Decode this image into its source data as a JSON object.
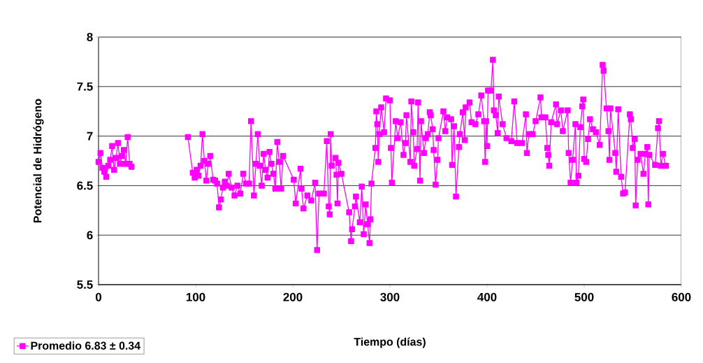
{
  "chart_data": {
    "type": "line",
    "xlabel": "Tiempo (días)",
    "ylabel": "Potencial de Hidrógeno",
    "xlim": [
      0,
      600
    ],
    "xticks": [
      0,
      100,
      200,
      300,
      400,
      500,
      600
    ],
    "ylim": [
      5.5,
      8
    ],
    "yticks": [
      5.5,
      6,
      6.5,
      7,
      7.5,
      8
    ],
    "grid": "y",
    "legend": "bottom left",
    "marker": "square",
    "line_style": "solid",
    "series": [
      {
        "name": "Promedio 6.83 ± 0.34",
        "color": "#ff00ff",
        "x": [
          0,
          2,
          4,
          6,
          8,
          10,
          12,
          14,
          16,
          18,
          20,
          22,
          24,
          26,
          28,
          30,
          32,
          34,
          60,
          92,
          97,
          99,
          101,
          103,
          105,
          107,
          109,
          111,
          113,
          115,
          118,
          120,
          122,
          124,
          126,
          128,
          130,
          132,
          134,
          137,
          140,
          143,
          146,
          149,
          152,
          155,
          157,
          160,
          162,
          164,
          166,
          168,
          170,
          172,
          174,
          176,
          178,
          180,
          182,
          184,
          186,
          188,
          190,
          201,
          203,
          208,
          209,
          211,
          215,
          219,
          223,
          225,
          227,
          232,
          235,
          237,
          238,
          239,
          240,
          244,
          245,
          246,
          247,
          250,
          258,
          260,
          261,
          264,
          265,
          269,
          271,
          273,
          275,
          277,
          279,
          280,
          281,
          285,
          286,
          287,
          288,
          289,
          291,
          294,
          296,
          300,
          301,
          302,
          306,
          308,
          311,
          314,
          316,
          317,
          321,
          322,
          324,
          325,
          328,
          329,
          331,
          332,
          335,
          337,
          339,
          341,
          342,
          344,
          345,
          347,
          349,
          350,
          355,
          357,
          359,
          363,
          364,
          366,
          368,
          371,
          372,
          375,
          377,
          378,
          382,
          384,
          388,
          391,
          394,
          397,
          398,
          399,
          400,
          401,
          404,
          406,
          407,
          409,
          411,
          412,
          416,
          420,
          425,
          428,
          431,
          436,
          440,
          441,
          443,
          447,
          450,
          455,
          456,
          460,
          462,
          463,
          464,
          466,
          471,
          472,
          476,
          478,
          483,
          484,
          486,
          488,
          491,
          492,
          494,
          496,
          498,
          499,
          500,
          502,
          504,
          506,
          509,
          512,
          516,
          519,
          520,
          523,
          525,
          526,
          527,
          532,
          533,
          535,
          538,
          540,
          542,
          547,
          548,
          550,
          552,
          553,
          555,
          558,
          561,
          563,
          565,
          566,
          567,
          573,
          576,
          577,
          579,
          581,
          584
        ],
        "values": [
          6.74,
          6.83,
          6.68,
          6.64,
          6.59,
          6.7,
          6.76,
          6.9,
          6.66,
          6.78,
          6.93,
          6.72,
          6.8,
          6.86,
          6.72,
          6.99,
          6.72,
          6.69,
          null,
          6.99,
          6.63,
          6.58,
          6.66,
          6.6,
          6.7,
          7.02,
          6.75,
          6.55,
          6.72,
          6.8,
          6.56,
          6.55,
          6.52,
          6.28,
          6.36,
          6.48,
          6.54,
          6.5,
          6.62,
          6.48,
          6.4,
          6.5,
          6.42,
          6.62,
          6.52,
          6.52,
          7.15,
          6.4,
          6.72,
          7.02,
          6.7,
          6.5,
          6.82,
          6.66,
          6.58,
          6.84,
          6.72,
          6.62,
          6.47,
          6.94,
          6.74,
          6.47,
          6.8,
          6.56,
          6.32,
          6.67,
          6.47,
          6.27,
          6.4,
          6.35,
          6.53,
          5.85,
          6.42,
          6.42,
          6.95,
          6.29,
          6.21,
          7.02,
          6.7,
          6.78,
          6.61,
          6.32,
          6.73,
          6.62,
          6.23,
          5.94,
          6.06,
          6.29,
          6.39,
          6.13,
          6.49,
          6.01,
          6.31,
          6.11,
          5.92,
          6.16,
          6.52,
          6.88,
          7.25,
          7.12,
          6.74,
          7.02,
          7.29,
          7.04,
          7.38,
          7.36,
          6.88,
          6.53,
          7.15,
          6.98,
          7.14,
          6.81,
          6.93,
          7.21,
          6.74,
          7.35,
          7.04,
          6.7,
          6.87,
          7.34,
          6.55,
          7.15,
          6.83,
          6.98,
          7.02,
          7.24,
          7.21,
          7.07,
          6.86,
          6.51,
          6.76,
          6.98,
          7.25,
          7.05,
          7.19,
          7.17,
          6.71,
          7.1,
          6.39,
          6.89,
          7.02,
          7.24,
          6.96,
          7.29,
          7.34,
          7.14,
          7.12,
          7.22,
          7.41,
          7.15,
          6.74,
          7.15,
          6.9,
          7.46,
          7.46,
          7.77,
          7.26,
          7.21,
          7.03,
          7.4,
          7.12,
          6.98,
          6.95,
          7.35,
          6.93,
          6.93,
          7.22,
          6.83,
          7.02,
          7.02,
          7.15,
          7.39,
          7.19,
          7.19,
          6.88,
          6.81,
          6.7,
          7.14,
          7.32,
          7.12,
          7.26,
          7.05,
          7.26,
          6.83,
          6.53,
          6.76,
          7.12,
          6.53,
          6.6,
          7.09,
          7.3,
          7.37,
          6.77,
          6.74,
          6.97,
          7.17,
          7.07,
          7.04,
          6.91,
          7.72,
          7.66,
          7.28,
          7.05,
          6.76,
          7.28,
          6.83,
          6.64,
          7.27,
          6.59,
          6.42,
          6.43,
          7.22,
          7.17,
          6.88,
          6.97,
          6.3,
          6.76,
          6.82,
          6.62,
          6.82,
          6.89,
          6.31,
          6.81,
          6.71,
          7.08,
          7.15,
          6.7,
          6.82,
          6.7
        ]
      }
    ]
  }
}
